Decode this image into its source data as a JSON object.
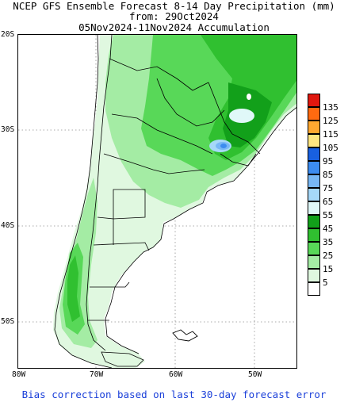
{
  "header": {
    "line1": "NCEP GFS Ensemble Forecast 8-14 Day Precipitation (mm)",
    "line2": "from: 29Oct2024",
    "line3": "05Nov2024-11Nov2024 Accumulation"
  },
  "map": {
    "lat_labels": [
      "20S",
      "30S",
      "40S",
      "50S"
    ],
    "lon_labels": [
      "80W",
      "70W",
      "60W",
      "50W"
    ]
  },
  "legend": {
    "labels": [
      "135",
      "125",
      "115",
      "105",
      "95",
      "85",
      "75",
      "65",
      "55",
      "45",
      "35",
      "25",
      "15",
      "5"
    ],
    "colors": [
      "#e0180f",
      "#ff6a10",
      "#ffa830",
      "#ffe680",
      "#1860e0",
      "#3c8cf0",
      "#78b8f5",
      "#a6d8f8",
      "#e0f8f8",
      "#12a01a",
      "#30c030",
      "#58d858",
      "#a4eca4",
      "#e0f8e0",
      "#ffffff"
    ]
  },
  "footer": {
    "text": "Bias correction based on last 30-day forecast error"
  }
}
